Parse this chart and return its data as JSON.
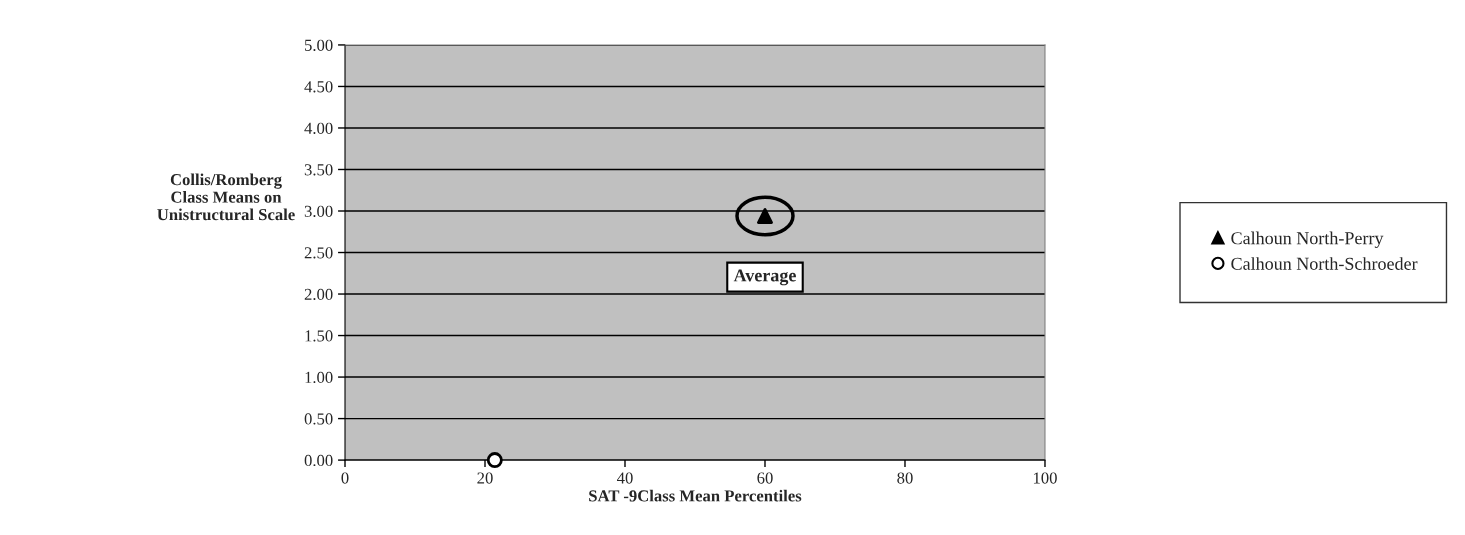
{
  "chart_data": {
    "type": "scatter",
    "xlabel": "SAT -9Class Mean Percentiles",
    "ylabel": "Collis/Romberg\nClass Means on\nUnistructural Scale",
    "xlim": [
      0,
      100
    ],
    "xticks": [
      0,
      20,
      40,
      60,
      80,
      100
    ],
    "ylim": [
      0,
      5
    ],
    "yticks": [
      {
        "value": 0,
        "label": "0.00"
      },
      {
        "value": 0.5,
        "label": "0.50"
      },
      {
        "value": 1,
        "label": "1.00"
      },
      {
        "value": 1.5,
        "label": "1.50"
      },
      {
        "value": 2,
        "label": "2.00"
      },
      {
        "value": 2.5,
        "label": "2.50"
      },
      {
        "value": 3,
        "label": "3.00"
      },
      {
        "value": 3.5,
        "label": "3.50"
      },
      {
        "value": 4,
        "label": "4.00"
      },
      {
        "value": 4.5,
        "label": "4.50"
      },
      {
        "value": 5,
        "label": "5.00"
      }
    ],
    "grid": "y",
    "legend": "right",
    "series": [
      {
        "name": "Calhoun North-Perry",
        "color": "#000000",
        "marker": "triangle",
        "x": [
          60
        ],
        "values": [
          2.94
        ]
      },
      {
        "name": "Calhoun North-Schroeder",
        "color": "#000000",
        "marker": "circle",
        "x": [
          21.4
        ],
        "values": [
          0
        ]
      }
    ],
    "annotations": [
      {
        "text": "Average",
        "x": 60,
        "y": 2.94
      }
    ]
  }
}
